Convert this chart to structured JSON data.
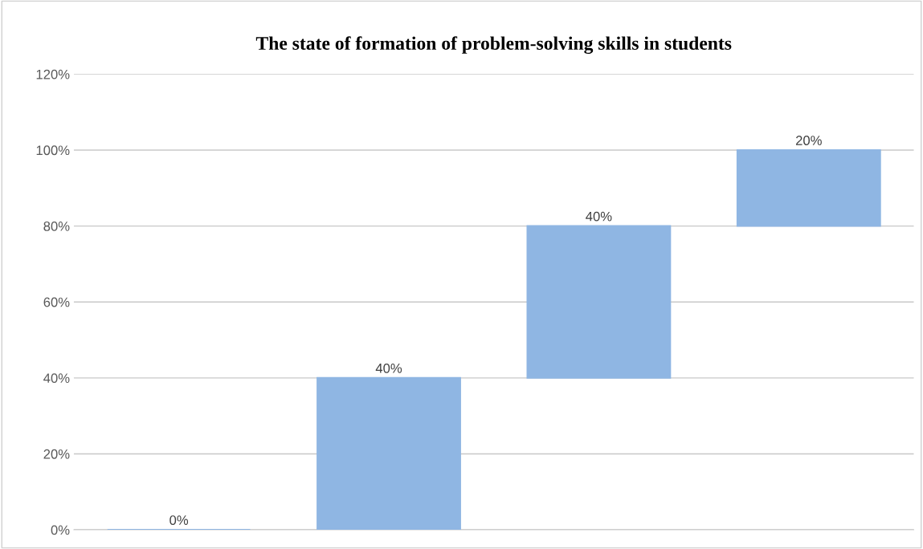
{
  "chart_data": {
    "type": "bar",
    "title": "The state of formation of problem-solving skills in students",
    "categories": [
      null,
      null,
      null,
      null
    ],
    "values": [
      0,
      40,
      40,
      20
    ],
    "base": [
      0,
      0,
      40,
      80
    ],
    "value_labels": [
      "0%",
      "40%",
      "40%",
      "20%"
    ],
    "color": "#8fb6e3",
    "ylim": [
      0,
      120
    ],
    "yticks": [
      {
        "value": 0,
        "label": "0%"
      },
      {
        "value": 20,
        "label": "20%"
      },
      {
        "value": 40,
        "label": "40%"
      },
      {
        "value": 60,
        "label": "60%"
      },
      {
        "value": 80,
        "label": "80%"
      },
      {
        "value": 100,
        "label": "100%"
      },
      {
        "value": 120,
        "label": "120%"
      }
    ],
    "grid": "y"
  }
}
